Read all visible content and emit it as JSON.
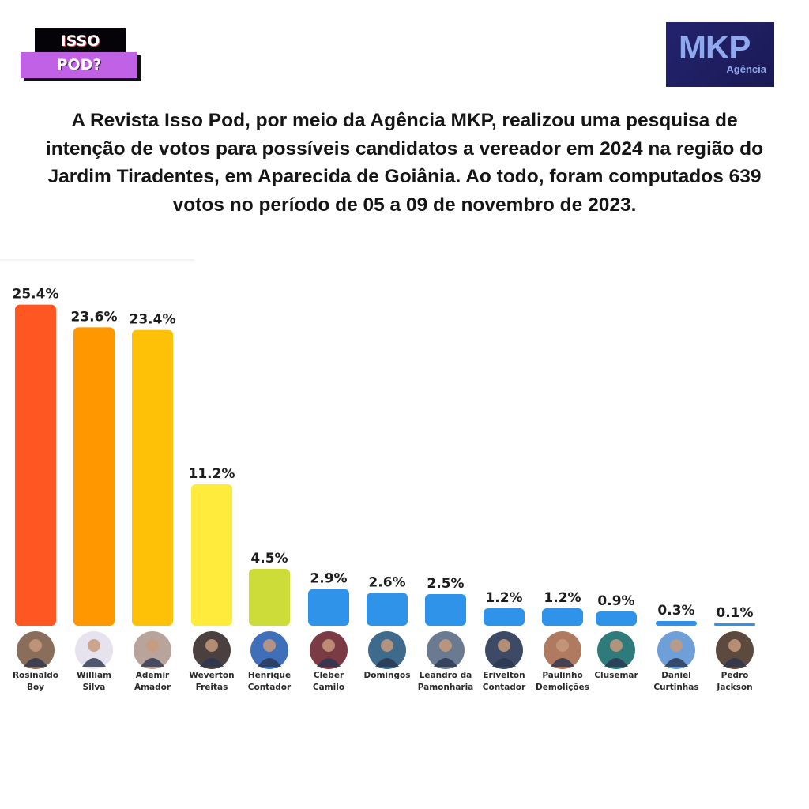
{
  "header": {
    "logo_left": {
      "line1": "ISSO",
      "line2": "POD?"
    },
    "logo_right": {
      "main": "MKP",
      "sub": "Agência"
    },
    "intro_text": "A Revista Isso Pod, por meio da Agência MKP, realizou uma pesquisa de intenção de votos para possíveis candidatos a vereador em 2024 na região do Jardim Tiradentes, em Aparecida de Goiânia. Ao todo, foram computados 639 votos no período de 05 a 09 de novembro de 2023."
  },
  "colors": {
    "isso_purple": "#c061e6",
    "mkp_navy": "#1f1f66",
    "mkp_text": "#8fa8ee"
  },
  "chart_data": {
    "type": "bar",
    "title": "",
    "xlabel": "",
    "ylabel": "",
    "ylim": [
      0,
      25.4
    ],
    "grid": false,
    "legend": "none",
    "value_suffix": "%",
    "categories": [
      [
        "Rosinaldo",
        "Boy"
      ],
      [
        "William",
        "Silva"
      ],
      [
        "Ademir",
        "Amador"
      ],
      [
        "Weverton",
        "Freitas"
      ],
      [
        "Henrique",
        "Contador"
      ],
      [
        "Cleber",
        "Camilo"
      ],
      [
        "Domingos"
      ],
      [
        "Leandro da",
        "Pamonharia"
      ],
      [
        "Erivelton",
        "Contador"
      ],
      [
        "Paulinho",
        "Demolições"
      ],
      [
        "Clusemar"
      ],
      [
        "Daniel",
        "Curtinhas"
      ],
      [
        "Pedro",
        "Jackson"
      ]
    ],
    "values": [
      25.4,
      23.6,
      23.4,
      11.2,
      4.5,
      2.9,
      2.6,
      2.5,
      1.2,
      1.2,
      0.9,
      0.3,
      0.1
    ],
    "labels": [
      "25.4%",
      "23.6%",
      "23.4%",
      "11.2%",
      "4.5%",
      "2.9%",
      "2.6%",
      "2.5%",
      "1.2%",
      "1.2%",
      "0.9%",
      "0.3%",
      "0.1%"
    ],
    "bar_colors": [
      "#ff5722",
      "#ff9800",
      "#ffc107",
      "#ffeb3b",
      "#cddc39",
      "#2e93e9",
      "#2e93e9",
      "#2e93e9",
      "#2e93e9",
      "#2e93e9",
      "#2e93e9",
      "#2e93e9",
      "#2e93e9"
    ],
    "avatar_colors": [
      "#8a6d5a",
      "#e6e2ee",
      "#b8a49a",
      "#4a4040",
      "#3f6fb8",
      "#7a3b45",
      "#3e6a8c",
      "#6a7a90",
      "#3d4a66",
      "#b07a60",
      "#2f7a7a",
      "#6f9fd8",
      "#5d4a3e"
    ]
  }
}
